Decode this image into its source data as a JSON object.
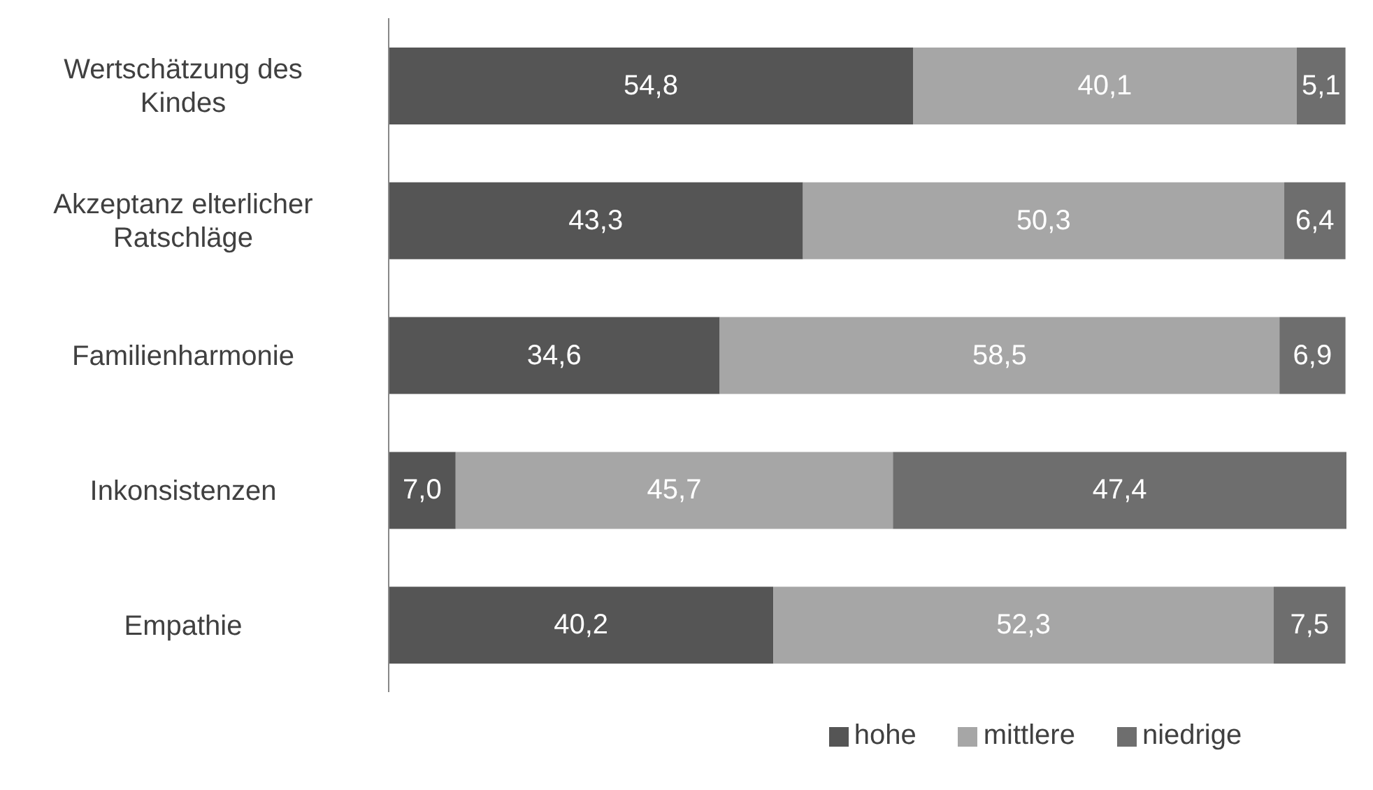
{
  "chart_data": {
    "type": "bar",
    "orientation": "horizontal",
    "stacked": true,
    "legend": "bottom",
    "grid": false,
    "categories": [
      "Wertschätzung des Kindes",
      "Akzeptanz elterlicher Ratschläge",
      "Familienharmonie",
      "Inkonsistenzen",
      "Empathie"
    ],
    "series": [
      {
        "name": "hohe",
        "color": "#555555",
        "values": [
          54.8,
          43.3,
          34.6,
          7.0,
          40.2
        ],
        "value_labels": [
          "54,8",
          "43,3",
          "34,6",
          "7,0",
          "40,2"
        ]
      },
      {
        "name": "mittlere",
        "color": "#a6a6a6",
        "values": [
          40.1,
          50.3,
          58.5,
          45.7,
          52.3
        ],
        "value_labels": [
          "40,1",
          "50,3",
          "58,5",
          "45,7",
          "52,3"
        ]
      },
      {
        "name": "niedrige",
        "color": "#6e6e6e",
        "values": [
          5.1,
          6.4,
          6.9,
          47.4,
          7.5
        ],
        "value_labels": [
          "5,1",
          "6,4",
          "6,9",
          "47,4",
          "7,5"
        ]
      }
    ]
  }
}
